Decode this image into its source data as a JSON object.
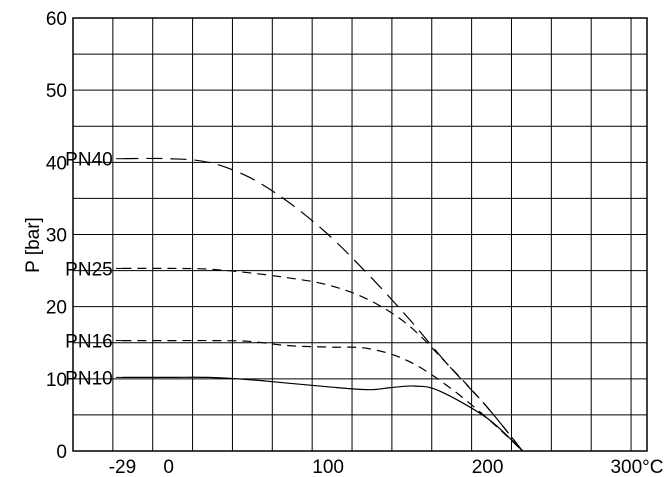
{
  "chart_data": {
    "type": "line",
    "title": "",
    "xlabel": "",
    "ylabel": "P [bar]",
    "x_unit_label": "300°C",
    "xlim": [
      -60,
      300
    ],
    "ylim": [
      0,
      60
    ],
    "xticks": [
      {
        "value": -29,
        "label": "-29"
      },
      {
        "value": 0,
        "label": "0"
      },
      {
        "value": 100,
        "label": "100"
      },
      {
        "value": 200,
        "label": "200"
      }
    ],
    "yticks": [
      {
        "value": 0,
        "label": "0"
      },
      {
        "value": 10,
        "label": "10"
      },
      {
        "value": 20,
        "label": "20"
      },
      {
        "value": 30,
        "label": "30"
      },
      {
        "value": 40,
        "label": "40"
      },
      {
        "value": 50,
        "label": "50"
      },
      {
        "value": 60,
        "label": "60"
      }
    ],
    "grid": true,
    "grid_x_step": 25,
    "grid_y_step": 5,
    "series": [
      {
        "name": "PN40",
        "style": "long-dash",
        "label_at": {
          "x": -50,
          "y": 40.5
        },
        "x": [
          -29,
          0,
          25,
          50,
          75,
          100,
          125,
          150,
          175,
          200,
          222
        ],
        "y": [
          40.5,
          40.5,
          40,
          38,
          34.5,
          30,
          24.5,
          18.5,
          12,
          6,
          0
        ]
      },
      {
        "name": "PN25",
        "style": "short-dash",
        "label_at": {
          "x": -50,
          "y": 25.3
        },
        "x": [
          -29,
          0,
          25,
          50,
          75,
          100,
          125,
          150,
          175,
          200,
          222
        ],
        "y": [
          25.3,
          25.3,
          25.2,
          24.7,
          24,
          23,
          21,
          17.5,
          12,
          6,
          0
        ]
      },
      {
        "name": "PN16",
        "style": "short-dash",
        "label_at": {
          "x": -50,
          "y": 15.3
        },
        "x": [
          -29,
          0,
          25,
          50,
          75,
          100,
          125,
          150,
          175,
          200,
          222
        ],
        "y": [
          15.3,
          15.3,
          15.3,
          15.2,
          14.6,
          14.4,
          14.2,
          12.5,
          9,
          4.5,
          0
        ]
      },
      {
        "name": "PN10",
        "style": "solid",
        "label_at": {
          "x": -50,
          "y": 10.2
        },
        "x": [
          -29,
          0,
          25,
          50,
          75,
          100,
          125,
          140,
          155,
          170,
          200,
          222
        ],
        "y": [
          10.2,
          10.2,
          10.2,
          9.9,
          9.4,
          8.9,
          8.5,
          8.8,
          9,
          8.3,
          4.5,
          0
        ]
      }
    ]
  }
}
